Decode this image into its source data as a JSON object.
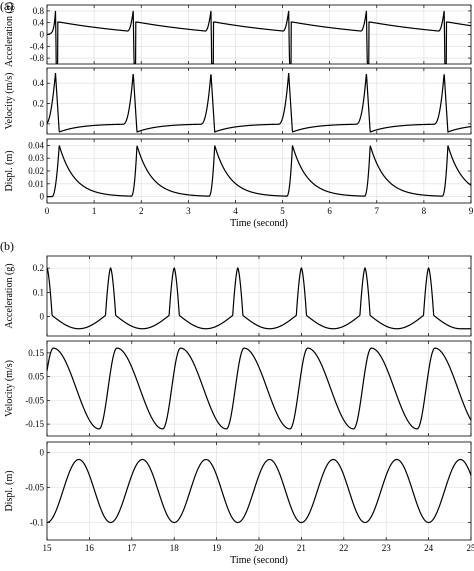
{
  "figure": {
    "panel_labels": [
      "(a)",
      "(b)"
    ]
  },
  "chart_data": [
    {
      "type": "line",
      "group": "(a)",
      "xlabel": "",
      "ylabel": "Acceleration (g)",
      "xlim": [
        0,
        9
      ],
      "ylim": [
        -1.0,
        1.0
      ],
      "xticks": [
        0,
        1,
        2,
        3,
        4,
        5,
        6,
        7,
        8,
        9
      ],
      "yticks": [
        -0.8,
        -0.4,
        0,
        0.4,
        0.8
      ],
      "yticklabels": [
        "-0.8",
        "-0.4",
        "0",
        "0.4",
        "0.8"
      ],
      "grid": true,
      "pattern": {
        "period": 1.65,
        "spikes_at": [
          0.18,
          1.83,
          3.48,
          5.13,
          6.78,
          8.43
        ],
        "start_x": 0.0
      }
    },
    {
      "type": "line",
      "group": "(a)",
      "xlabel": "",
      "ylabel": "Velocity (m/s)",
      "xlim": [
        0,
        9
      ],
      "ylim": [
        -0.1,
        0.55
      ],
      "xticks": [
        0,
        1,
        2,
        3,
        4,
        5,
        6,
        7,
        8,
        9
      ],
      "yticks": [
        0,
        0.2,
        0.4
      ],
      "yticklabels": [
        "0",
        "0.2",
        "0.4"
      ],
      "grid": true,
      "pattern": {
        "period": 1.65,
        "spikes_at": [
          0.18,
          1.83,
          3.48,
          5.13,
          6.78,
          8.43
        ],
        "peak": 0.5,
        "trough": -0.08
      }
    },
    {
      "type": "line",
      "group": "(a)",
      "xlabel": "Time (second)",
      "ylabel": "Displ. (m)",
      "xlim": [
        0,
        9
      ],
      "ylim": [
        -0.005,
        0.045
      ],
      "xticks": [
        0,
        1,
        2,
        3,
        4,
        5,
        6,
        7,
        8,
        9
      ],
      "xticklabels": [
        "0",
        "1",
        "2",
        "3",
        "4",
        "5",
        "6",
        "7",
        "8",
        "9"
      ],
      "yticks": [
        0,
        0.01,
        0.02,
        0.03,
        0.04
      ],
      "yticklabels": [
        "0",
        "0.01",
        "0.02",
        "0.03",
        "0.04"
      ],
      "grid": true,
      "pattern": {
        "period": 1.65,
        "spikes_at": [
          0.18,
          1.83,
          3.48,
          5.13,
          6.78,
          8.43
        ],
        "peak": 0.04
      }
    },
    {
      "type": "line",
      "group": "(b)",
      "xlabel": "",
      "ylabel": "Acceleration (g)",
      "xlim": [
        15,
        25
      ],
      "ylim": [
        -0.08,
        0.25
      ],
      "xticks": [
        15,
        16,
        17,
        18,
        19,
        20,
        21,
        22,
        23,
        24,
        25
      ],
      "yticks": [
        0,
        0.1,
        0.2
      ],
      "yticklabels": [
        "0",
        "0.1",
        "0.2"
      ],
      "grid": true,
      "pattern": {
        "period": 1.5,
        "spikes_at": [
          15.0,
          16.5,
          18.0,
          19.5,
          21.0,
          22.5,
          24.0
        ],
        "peak": 0.2,
        "trough": -0.05
      }
    },
    {
      "type": "line",
      "group": "(b)",
      "xlabel": "",
      "ylabel": "Velocity (m/s)",
      "xlim": [
        15,
        25
      ],
      "ylim": [
        -0.2,
        0.2
      ],
      "xticks": [
        15,
        16,
        17,
        18,
        19,
        20,
        21,
        22,
        23,
        24,
        25
      ],
      "yticks": [
        -0.15,
        -0.05,
        0.05,
        0.15
      ],
      "yticklabels": [
        "-0.15",
        "-0.05",
        "0.05",
        "0.15"
      ],
      "grid": true,
      "pattern": {
        "period": 1.5,
        "max_at_offset": 0.15,
        "amplitude": 0.17
      }
    },
    {
      "type": "line",
      "group": "(b)",
      "xlabel": "Time (second)",
      "ylabel": "Displ. (m)",
      "xlim": [
        15,
        25
      ],
      "ylim": [
        -0.125,
        0.015
      ],
      "xticks": [
        15,
        16,
        17,
        18,
        19,
        20,
        21,
        22,
        23,
        24,
        25
      ],
      "xticklabels": [
        "15",
        "16",
        "17",
        "18",
        "19",
        "20",
        "21",
        "22",
        "23",
        "24",
        "25"
      ],
      "yticks": [
        -0.1,
        -0.05,
        0
      ],
      "yticklabels": [
        "-0.1",
        "-0.05",
        "0"
      ],
      "grid": true,
      "pattern": {
        "period": 1.5,
        "min_at": 15.0,
        "min": -0.1,
        "max": -0.01
      }
    }
  ]
}
